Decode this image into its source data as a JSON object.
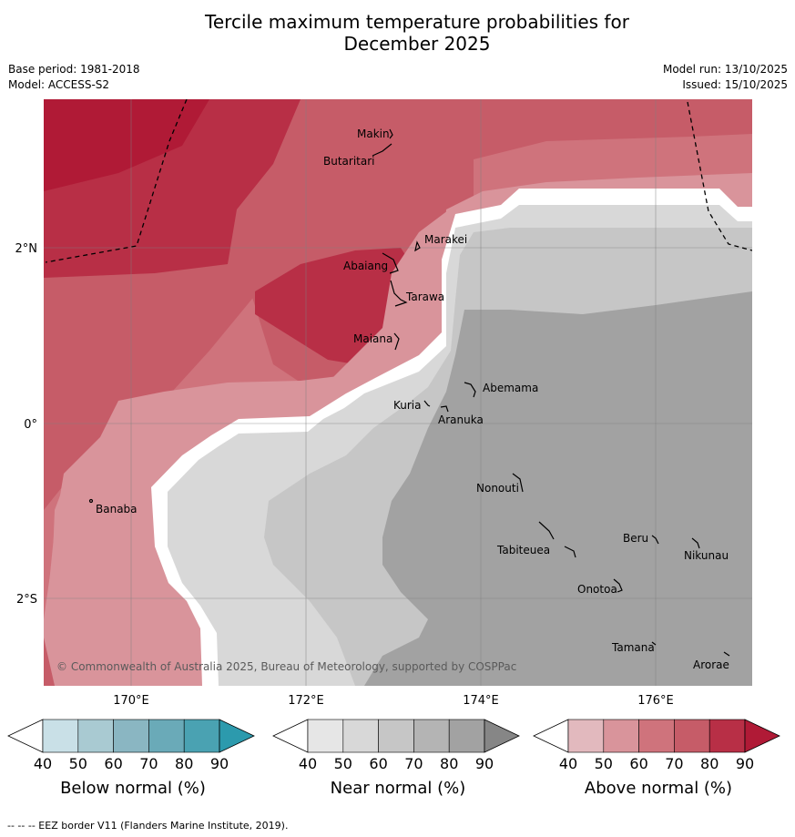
{
  "title_line1": "Tercile maximum temperature probabilities for",
  "title_line2": "December 2025",
  "meta": {
    "base_period": "Base period: 1981-2018",
    "model": "Model: ACCESS-S2",
    "model_run": "Model run: 13/10/2025",
    "issued": "Issued: 15/10/2025"
  },
  "axes": {
    "lat_labels": [
      "2°N",
      "0°",
      "2°S"
    ],
    "lon_labels": [
      "170°E",
      "172°E",
      "174°E",
      "176°E"
    ]
  },
  "places": [
    "Makin",
    "Butaritari",
    "Marakei",
    "Abaiang",
    "Tarawa",
    "Maiana",
    "Abemama",
    "Kuria",
    "Aranuka",
    "Banaba",
    "Nonouti",
    "Beru",
    "Tabiteuea",
    "Nikunau",
    "Onotoa",
    "Tamana",
    "Arorae"
  ],
  "copyright": "© Commonwealth of Australia 2025, Bureau of Meteorology, supported by COSPPac",
  "colorbars": [
    {
      "title": "Below normal (%)",
      "ticks": [
        "40",
        "50",
        "60",
        "70",
        "80",
        "90"
      ],
      "colors": [
        "#ffffff",
        "#c9e0e7",
        "#a9cad2",
        "#8ab6c2",
        "#6aaab8",
        "#4aa2b2",
        "#2c9aad"
      ]
    },
    {
      "title": "Near normal (%)",
      "ticks": [
        "40",
        "50",
        "60",
        "70",
        "80",
        "90"
      ],
      "colors": [
        "#ffffff",
        "#e6e6e6",
        "#d8d8d8",
        "#c6c6c6",
        "#b4b4b4",
        "#a2a2a2",
        "#868686"
      ]
    },
    {
      "title": "Above normal (%)",
      "ticks": [
        "40",
        "50",
        "60",
        "70",
        "80",
        "90"
      ],
      "colors": [
        "#ffffff",
        "#e2b9be",
        "#d9949b",
        "#cf737c",
        "#c65c68",
        "#b82f46",
        "#b01a36"
      ]
    }
  ],
  "footnote": "--  --  -- EEZ border V11 (Flanders Marine Institute, 2019)."
}
